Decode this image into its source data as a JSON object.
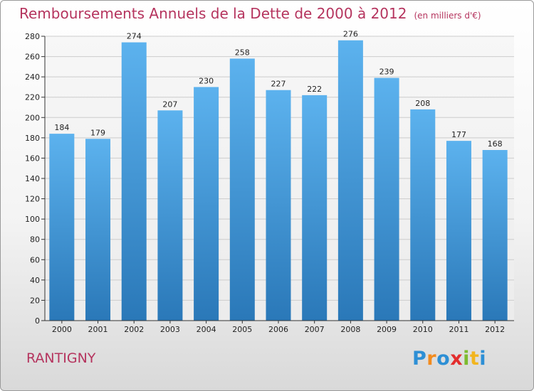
{
  "title": "Remboursements Annuels de la Dette de 2000 à 2012",
  "unit_note": "(en milliers d'€)",
  "commune": "RANTIGNY",
  "logo": {
    "text": "Proxiti",
    "letters": [
      {
        "ch": "P",
        "color": "#2d8fd5"
      },
      {
        "ch": "r",
        "color": "#f28b1e"
      },
      {
        "ch": "o",
        "color": "#2d8fd5"
      },
      {
        "ch": "x",
        "color": "#e32d2d"
      },
      {
        "ch": "i",
        "color": "#7dbb2f"
      },
      {
        "ch": "t",
        "color": "#f2b51e"
      },
      {
        "ch": "i",
        "color": "#2d8fd5"
      }
    ]
  },
  "colors": {
    "title": "#b5345e",
    "bar_top": "#5cb2ee",
    "bar_bottom": "#2a78b8",
    "grid": "#cccccc"
  },
  "chart_data": {
    "type": "bar",
    "title": "Remboursements Annuels de la Dette de 2000 à 2012",
    "categories": [
      "2000",
      "2001",
      "2002",
      "2003",
      "2004",
      "2005",
      "2006",
      "2007",
      "2008",
      "2009",
      "2010",
      "2011",
      "2012"
    ],
    "values": [
      184,
      179,
      274,
      207,
      230,
      258,
      227,
      222,
      276,
      239,
      208,
      177,
      168
    ],
    "xlabel": "",
    "ylabel": "",
    "ylim": [
      0,
      280
    ],
    "yticks": [
      0,
      20,
      40,
      60,
      80,
      100,
      120,
      140,
      160,
      180,
      200,
      220,
      240,
      260,
      280
    ],
    "grid": true,
    "data_labels": true
  }
}
